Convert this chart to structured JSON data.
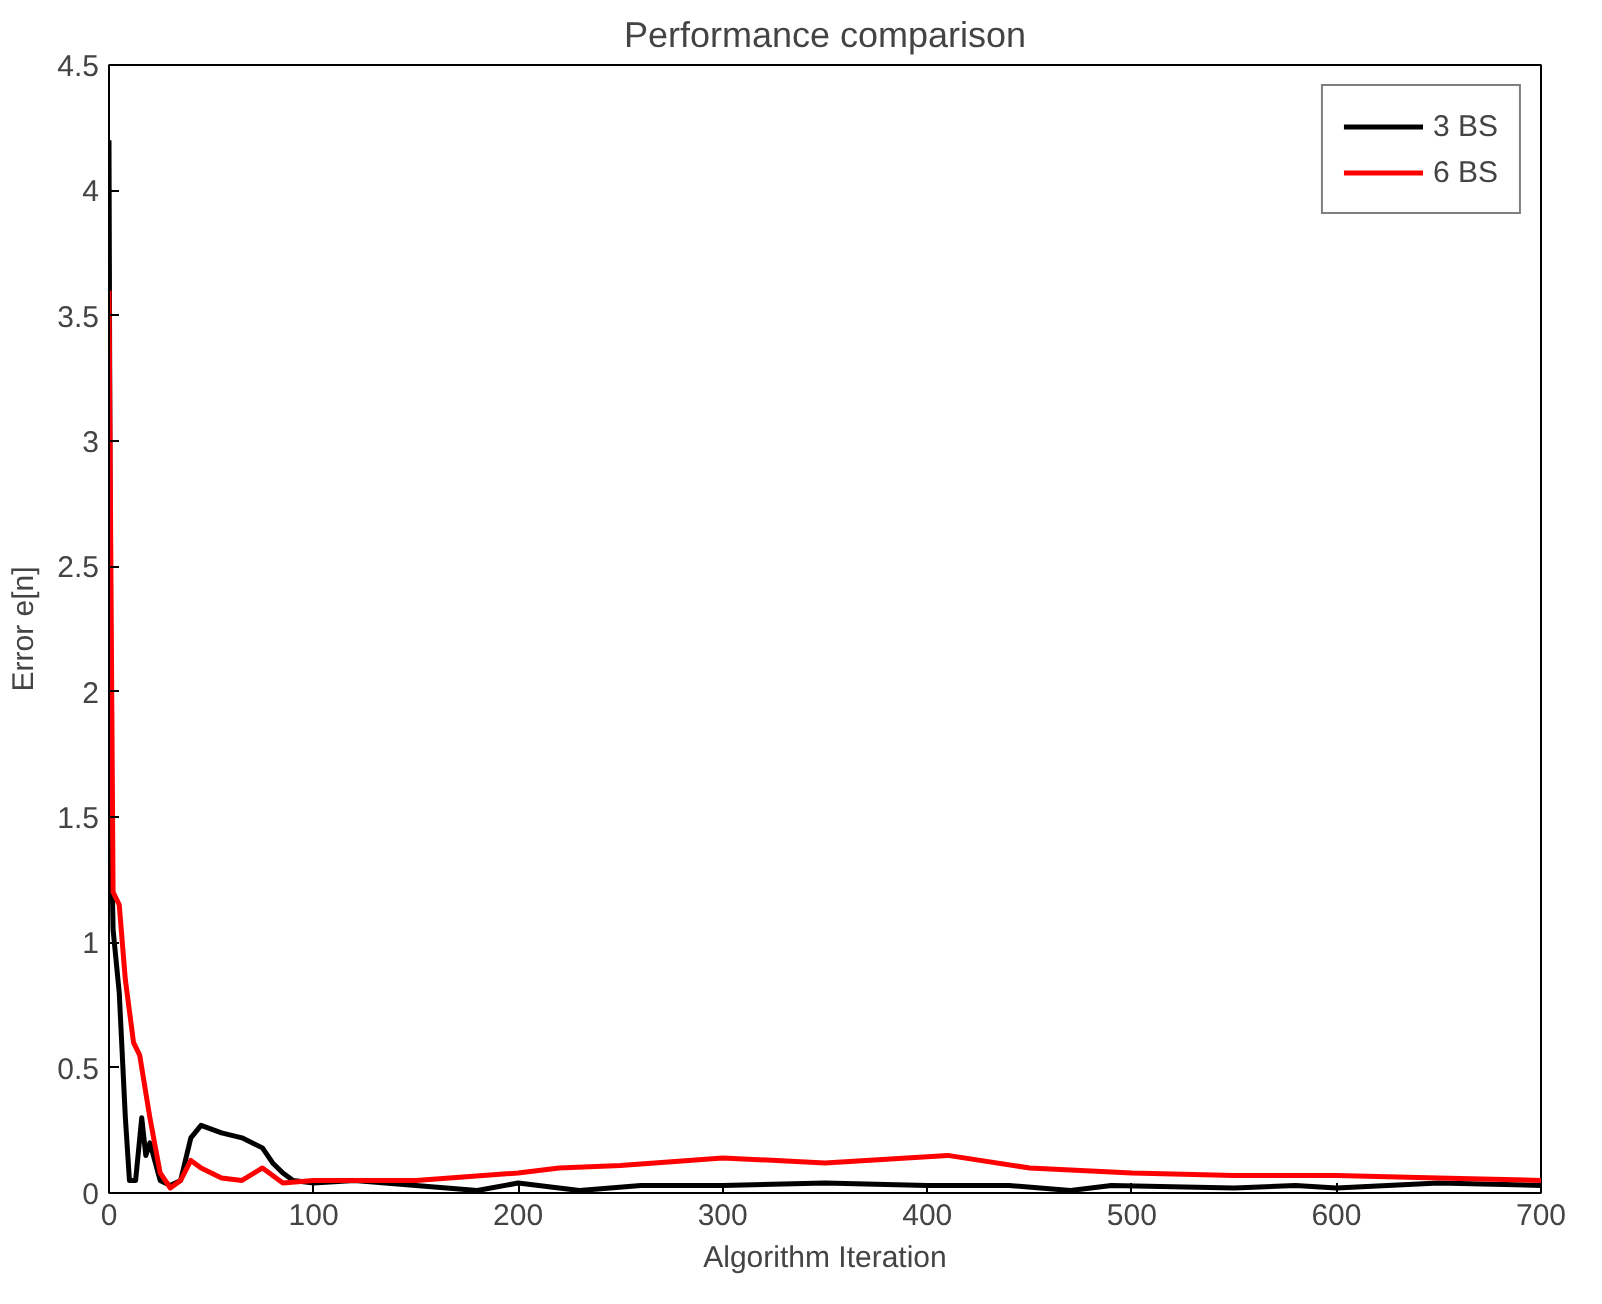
{
  "chart_data": {
    "type": "line",
    "title": "Performance comparison",
    "xlabel": "Algorithm Iteration",
    "ylabel": "Error e[n]",
    "xlim": [
      0,
      700
    ],
    "ylim": [
      0,
      4.5
    ],
    "xticks": [
      0,
      100,
      200,
      300,
      400,
      500,
      600,
      700
    ],
    "yticks": [
      0,
      0.5,
      1,
      1.5,
      2,
      2.5,
      3,
      3.5,
      4,
      4.5
    ],
    "grid": false,
    "legend": "top right",
    "line_style": "solid",
    "series": [
      {
        "name": "3 BS",
        "color": "#000000",
        "x": [
          0,
          1,
          2,
          5,
          8,
          10,
          13,
          16,
          18,
          20,
          25,
          30,
          35,
          40,
          45,
          55,
          65,
          75,
          80,
          85,
          90,
          100,
          120,
          150,
          180,
          200,
          230,
          260,
          300,
          350,
          400,
          440,
          470,
          490,
          550,
          580,
          600,
          650,
          700
        ],
        "values": [
          4.2,
          1.5,
          1.05,
          0.8,
          0.3,
          0.05,
          0.05,
          0.3,
          0.15,
          0.2,
          0.05,
          0.03,
          0.05,
          0.22,
          0.27,
          0.24,
          0.22,
          0.18,
          0.12,
          0.08,
          0.05,
          0.04,
          0.05,
          0.03,
          0.01,
          0.04,
          0.01,
          0.03,
          0.03,
          0.04,
          0.03,
          0.03,
          0.01,
          0.03,
          0.02,
          0.03,
          0.02,
          0.04,
          0.03
        ]
      },
      {
        "name": "6 BS",
        "color": "#ff0000",
        "x": [
          0,
          2,
          5,
          8,
          12,
          15,
          20,
          25,
          30,
          35,
          40,
          45,
          55,
          65,
          75,
          85,
          100,
          150,
          200,
          220,
          250,
          300,
          350,
          410,
          450,
          500,
          550,
          600,
          650,
          700
        ],
        "values": [
          3.6,
          1.2,
          1.15,
          0.85,
          0.6,
          0.55,
          0.3,
          0.08,
          0.02,
          0.05,
          0.13,
          0.1,
          0.06,
          0.05,
          0.1,
          0.04,
          0.05,
          0.05,
          0.08,
          0.1,
          0.11,
          0.14,
          0.12,
          0.15,
          0.1,
          0.08,
          0.07,
          0.07,
          0.06,
          0.05
        ]
      }
    ]
  }
}
